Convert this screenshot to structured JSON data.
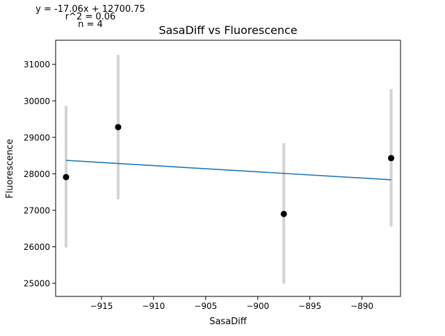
{
  "chart_data": {
    "type": "scatter",
    "title": "SasaDiff vs Fluorescence",
    "xlabel": "SasaDiff",
    "ylabel": "Fluorescence",
    "annotations": [
      "y = -17.06x + 12700.75",
      "r^2 = 0.06",
      "n = 4"
    ],
    "xlim": [
      -919.4,
      -886.3
    ],
    "ylim": [
      24640,
      31660
    ],
    "xticks": [
      -915,
      -910,
      -905,
      -900,
      -895,
      -890
    ],
    "xtick_labels": [
      "−915",
      "−910",
      "−905",
      "−900",
      "−895",
      "−890"
    ],
    "yticks": [
      25000,
      26000,
      27000,
      28000,
      29000,
      30000,
      31000
    ],
    "ytick_labels": [
      "25000",
      "26000",
      "27000",
      "28000",
      "29000",
      "30000",
      "31000"
    ],
    "grid": false,
    "points": [
      {
        "x": -918.4,
        "y": 27910,
        "err_low": 25980,
        "err_high": 29860
      },
      {
        "x": -913.4,
        "y": 29280,
        "err_low": 27300,
        "err_high": 31260
      },
      {
        "x": -897.5,
        "y": 26900,
        "err_low": 24990,
        "err_high": 28840
      },
      {
        "x": -887.2,
        "y": 28430,
        "err_low": 26560,
        "err_high": 30320
      }
    ],
    "fit_line": {
      "slope": -17.06,
      "intercept": 12700.75,
      "x_range": [
        -918.4,
        -887.2
      ]
    },
    "colors": {
      "point": "#000000",
      "error_bar": "#d3d3d3",
      "fit_line": "#1f77b4",
      "axes": "#000000"
    }
  }
}
